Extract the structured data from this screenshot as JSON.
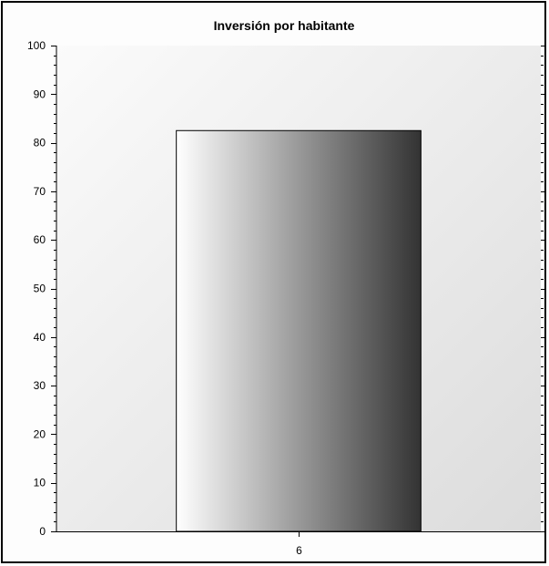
{
  "chart_data": {
    "type": "bar",
    "title": "Inversión por habitante",
    "categories": [
      "6"
    ],
    "values": [
      82.5
    ],
    "xlabel": "",
    "ylabel": "",
    "ylim": [
      0,
      100
    ],
    "yticks": [
      "0",
      "10",
      "20",
      "30",
      "40",
      "50",
      "60",
      "70",
      "80",
      "90",
      "100"
    ],
    "grid": false,
    "legend": "none"
  },
  "colors": {
    "plot_bg_light": "#fbfbfb",
    "plot_bg_dark": "#dcdcdc",
    "bar_light": "#ffffff",
    "bar_dark": "#333333",
    "axis": "#000000"
  }
}
